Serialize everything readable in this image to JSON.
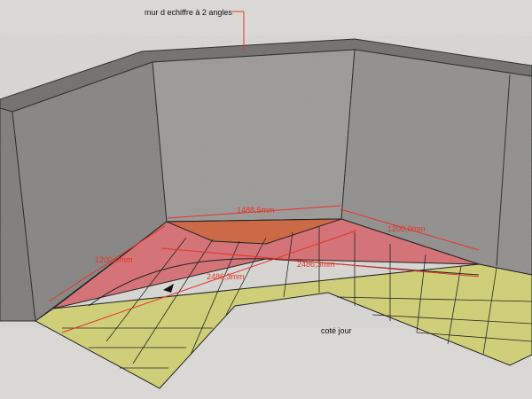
{
  "annotations": {
    "title_note": "mur d echiffre à 2 angles",
    "side_note": "coté jour"
  },
  "dimensions": {
    "back_wall": "1488,5mm",
    "left_wall": "1200,0mm",
    "right_wall": "1200,0mm",
    "diagonal_1": "2486,3mm",
    "diagonal_2": "2486,3mm"
  },
  "colors": {
    "background": "#d9d8d5",
    "wall": "#8d8b88",
    "floor": "#cfcf7a",
    "landing": "#d47478",
    "triangle": "#cc6a48",
    "dimension": "#e8322a"
  }
}
